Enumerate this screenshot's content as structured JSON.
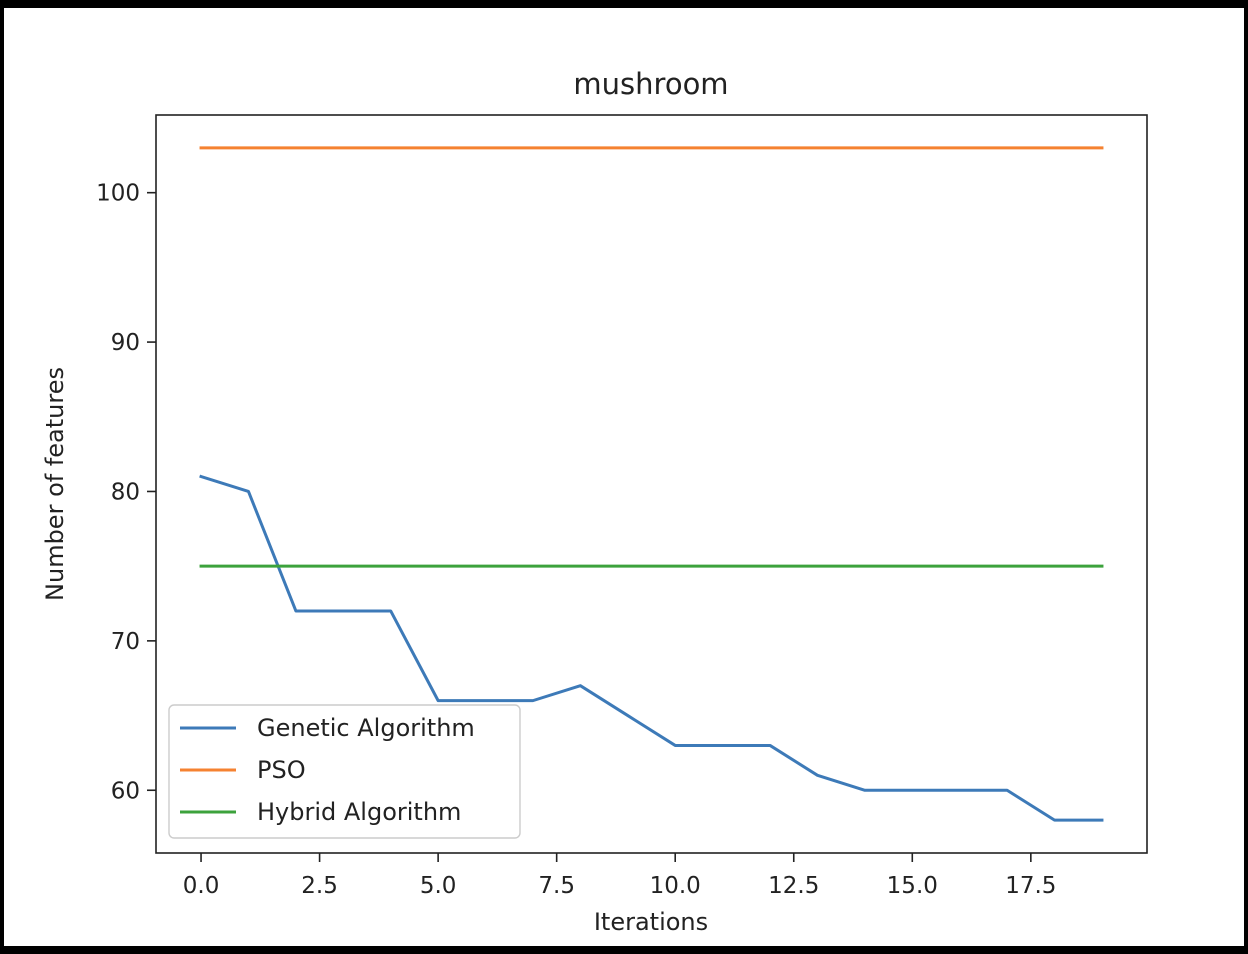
{
  "chart_data": {
    "type": "line",
    "title": "mushroom",
    "xlabel": "Iterations",
    "ylabel": "Number of features",
    "xlim": [
      -0.95,
      19.95
    ],
    "ylim": [
      55.8,
      105.2
    ],
    "xticks": [
      0.0,
      2.5,
      5.0,
      7.5,
      10.0,
      12.5,
      15.0,
      17.5
    ],
    "xtick_labels": [
      "0.0",
      "2.5",
      "5.0",
      "7.5",
      "10.0",
      "12.5",
      "15.0",
      "17.5"
    ],
    "yticks": [
      60,
      70,
      80,
      90,
      100
    ],
    "ytick_labels": [
      "60",
      "70",
      "80",
      "90",
      "100"
    ],
    "grid": false,
    "legend_position": "lower-left",
    "x": [
      0,
      1,
      2,
      3,
      4,
      5,
      6,
      7,
      8,
      9,
      10,
      11,
      12,
      13,
      14,
      15,
      16,
      17,
      18,
      19
    ],
    "series": [
      {
        "name": "Genetic Algorithm",
        "color": "#3d7ab8",
        "values": [
          81,
          80,
          72,
          72,
          72,
          66,
          66,
          66,
          67,
          65,
          63,
          63,
          63,
          61,
          60,
          60,
          60,
          60,
          58,
          58
        ]
      },
      {
        "name": "PSO",
        "color": "#f58231",
        "values": [
          103,
          103,
          103,
          103,
          103,
          103,
          103,
          103,
          103,
          103,
          103,
          103,
          103,
          103,
          103,
          103,
          103,
          103,
          103,
          103
        ]
      },
      {
        "name": "Hybrid Algorithm",
        "color": "#3ca23c",
        "values": [
          75,
          75,
          75,
          75,
          75,
          75,
          75,
          75,
          75,
          75,
          75,
          75,
          75,
          75,
          75,
          75,
          75,
          75,
          75,
          75
        ]
      }
    ]
  }
}
